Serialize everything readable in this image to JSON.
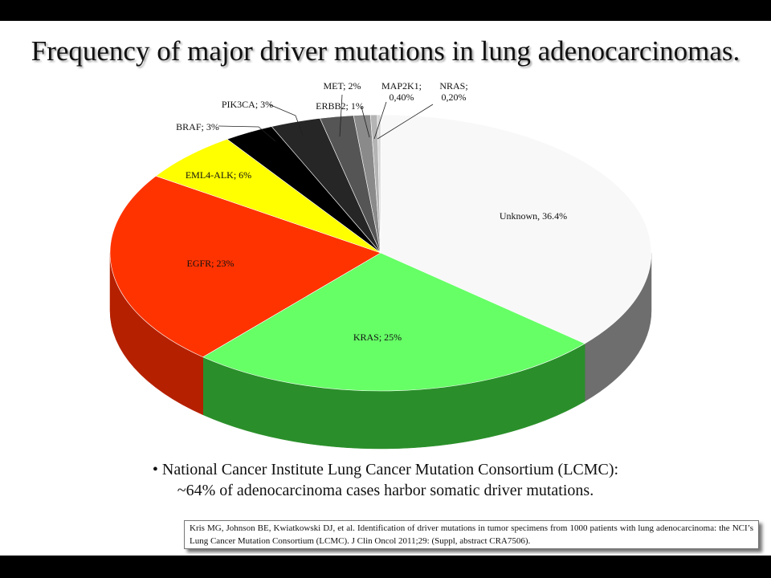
{
  "slide": {
    "title": "Frequency of major driver mutations in lung adenocarcinomas.",
    "bullet_line1": "• National Cancer Institute Lung Cancer Mutation Consortium  (LCMC):",
    "bullet_line2": "~64% of adenocarcinoma cases harbor somatic driver mutations.",
    "reference": "Kris MG, Johnson BE, Kwiatkowski DJ, et al. Identification of driver mutations in tumor specimens from 1000 patients with lung adenocarcinoma: the NCI’s Lung Cancer Mutation Consortium (LCMC). J Clin Oncol 2011;29: (Suppl, abstract CRA7506)."
  },
  "chart_data": {
    "type": "pie",
    "title": "Frequency of major driver mutations in lung adenocarcinomas.",
    "style": "3d",
    "slices": [
      {
        "name": "Unknown",
        "value": 36.4,
        "label": "Unknown, 36.4%",
        "color": "#f8f8f8",
        "side": "#6e6e6e"
      },
      {
        "name": "KRAS",
        "value": 25,
        "label": "KRAS; 25%",
        "color": "#66ff66",
        "side": "#2a8f2a"
      },
      {
        "name": "EGFR",
        "value": 23,
        "label": "EGFR; 23%",
        "color": "#ff3300",
        "side": "#b52000"
      },
      {
        "name": "EML4-ALK",
        "value": 6,
        "label": "EML4-ALK; 6%",
        "color": "#ffff00",
        "side": "#a8a800"
      },
      {
        "name": "BRAF",
        "value": 3,
        "label": "BRAF; 3%",
        "color": "#000000",
        "side": "#000000"
      },
      {
        "name": "PIK3CA",
        "value": 3,
        "label": "PIK3CA; 3%",
        "color": "#262626",
        "side": "#111111"
      },
      {
        "name": "MET",
        "value": 2,
        "label": "MET; 2%",
        "color": "#555555",
        "side": "#333333"
      },
      {
        "name": "ERBB2",
        "value": 1,
        "label": "ERBB2; 1%",
        "color": "#8a8a8a",
        "side": "#555555"
      },
      {
        "name": "MAP2K1",
        "value": 0.4,
        "label_lines": [
          "MAP2K1;",
          "0,40%"
        ],
        "color": "#b4b4b4",
        "side": "#777777"
      },
      {
        "name": "NRAS",
        "value": 0.2,
        "label_lines": [
          "NRAS;",
          "0,20%"
        ],
        "color": "#d6d6d6",
        "side": "#999999"
      }
    ]
  }
}
